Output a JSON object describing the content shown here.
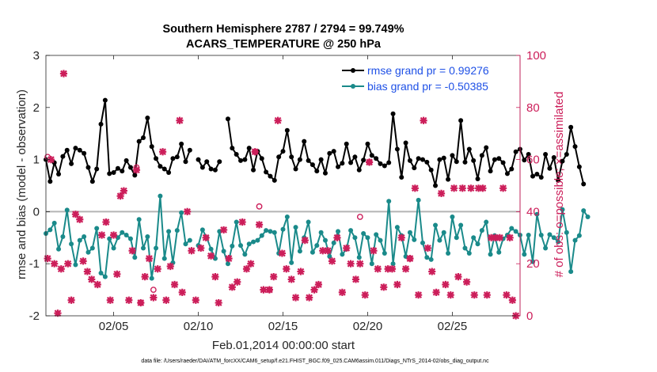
{
  "chart_data": {
    "type": "line",
    "title_line1": "Southern Hemisphere 2787 / 2794 = 99.749%",
    "title_line2": "ACARS_TEMPERATURE @ 250 hPa",
    "xlabel": "Feb.01,2014 00:00:00 start",
    "ylabel_left": "rmse and bias (model - observation)",
    "ylabel_right": "# of obs: o=possible; ×=assimilated",
    "x_range_days": [
      1,
      29
    ],
    "xticks": [
      {
        "day": 5,
        "label": "02/05"
      },
      {
        "day": 10,
        "label": "02/10"
      },
      {
        "day": 15,
        "label": "02/15"
      },
      {
        "day": 20,
        "label": "02/20"
      },
      {
        "day": 25,
        "label": "02/25"
      }
    ],
    "ylim_left": [
      -2,
      3
    ],
    "yticks_left": [
      {
        "value": -2,
        "label": "-2"
      },
      {
        "value": -1,
        "label": "-1"
      },
      {
        "value": 0,
        "label": "0"
      },
      {
        "value": 1,
        "label": "1"
      },
      {
        "value": 2,
        "label": "2"
      },
      {
        "value": 3,
        "label": "3"
      }
    ],
    "ylim_right": [
      0,
      100
    ],
    "yticks_right": [
      {
        "value": 0,
        "label": "0"
      },
      {
        "value": 20,
        "label": "20"
      },
      {
        "value": 40,
        "label": "40"
      },
      {
        "value": 60,
        "label": "60"
      },
      {
        "value": 80,
        "label": "80"
      },
      {
        "value": 100,
        "label": "100"
      }
    ],
    "zero_line": 0,
    "x_step_days": 0.25,
    "series": [
      {
        "name": "rmse grand pr = 0.99276",
        "axis": "left",
        "color": "#000000",
        "x_start": 1.0,
        "values": [
          1.0,
          0.58,
          0.94,
          0.72,
          1.06,
          1.18,
          0.92,
          1.22,
          1.18,
          1.12,
          0.85,
          0.58,
          0.82,
          1.68,
          2.14,
          0.73,
          0.75,
          0.83,
          0.78,
          0.98,
          0.85,
          0.7,
          1.35,
          1.42,
          1.8,
          1.25,
          1.02,
          0.87,
          0.82,
          0.75,
          1.02,
          1.05,
          1.3,
          0.96,
          1.18,
          null,
          1.0,
          0.85,
          0.96,
          0.82,
          0.8,
          0.96,
          null,
          1.78,
          1.22,
          1.1,
          0.98,
          1.0,
          1.22,
          0.8,
          1.16,
          1.02,
          0.76,
          0.68,
          0.6,
          1.05,
          1.16,
          1.56,
          1.05,
          0.82,
          1.0,
          1.35,
          0.98,
          0.9,
          0.78,
          1.0,
          0.74,
          1.12,
          1.16,
          0.86,
          0.93,
          1.3,
          0.94,
          1.05,
          0.8,
          0.99,
          1.3,
          1.08,
          1.02,
          0.92,
          0.88,
          0.94,
          1.88,
          1.2,
          0.66,
          1.32,
          0.98,
          0.84,
          1.02,
          1.0,
          0.95,
          0.8,
          0.5,
          1.0,
          1.03,
          0.62,
          1.08,
          0.96,
          1.75,
          0.95,
          1.2,
          0.98,
          0.63,
          1.08,
          1.23,
          0.78,
          1.0,
          1.02,
          0.94,
          0.73,
          0.82,
          1.15,
          1.2,
          0.99,
          1.1,
          0.68,
          0.72,
          0.66,
          1.1,
          0.83,
          1.04,
          0.6,
          0.97,
          1.1,
          1.62,
          1.25,
          0.86,
          0.53
        ]
      },
      {
        "name": "bias grand pr = -0.50385",
        "axis": "left",
        "color": "#1a8a8a",
        "x_start": 1.0,
        "values": [
          -0.42,
          -0.35,
          -0.22,
          -0.72,
          -0.48,
          0.03,
          -0.62,
          -1.02,
          -0.55,
          -0.48,
          -0.78,
          -0.7,
          -0.32,
          -1.18,
          -1.25,
          -0.52,
          -0.7,
          -0.5,
          -0.4,
          -0.45,
          -0.52,
          -0.88,
          -0.15,
          -0.7,
          -0.48,
          -1.28,
          -0.7,
          0.3,
          -0.9,
          -0.38,
          -0.98,
          -0.36,
          -0.02,
          -0.62,
          -0.55,
          null,
          -0.65,
          -0.35,
          -0.5,
          -0.72,
          -0.9,
          -0.38,
          -0.76,
          -1.0,
          -0.66,
          -0.2,
          -0.65,
          -0.82,
          -0.62,
          -0.58,
          -0.55,
          -0.46,
          -0.36,
          -0.38,
          -0.4,
          -0.8,
          -0.34,
          -0.1,
          -0.98,
          -0.3,
          -0.76,
          -0.5,
          -0.2,
          -0.78,
          -0.65,
          -0.4,
          -0.55,
          -0.86,
          -0.6,
          -0.38,
          -0.82,
          -0.72,
          -0.36,
          -0.5,
          -0.88,
          -0.42,
          -0.5,
          -1.0,
          -0.44,
          -0.55,
          -0.8,
          0.2,
          -1.0,
          -0.3,
          -0.46,
          -0.86,
          -0.4,
          -0.54,
          0.22,
          -0.6,
          -0.88,
          -0.92,
          -0.26,
          -0.55,
          -0.4,
          -0.8,
          -0.1,
          -0.5,
          -0.26,
          -0.7,
          -0.8,
          -0.5,
          -0.62,
          -0.36,
          -0.2,
          -0.82,
          -0.46,
          -0.78,
          -0.52,
          -0.45,
          -0.32,
          -0.38,
          -0.45,
          -0.82,
          -0.45,
          -0.96,
          -0.05,
          -0.45,
          -0.7,
          -0.44,
          -0.5,
          -0.58,
          0.04,
          -0.4,
          -1.15,
          -0.55,
          -0.46,
          0.02,
          -0.1
        ]
      },
      {
        "name": "# assimilated",
        "axis": "right",
        "color": "#cc1e5a",
        "marker": "x",
        "points": [
          [
            1.1,
            22
          ],
          [
            1.3,
            60
          ],
          [
            1.5,
            20
          ],
          [
            1.7,
            1
          ],
          [
            1.9,
            18
          ],
          [
            2.05,
            93
          ],
          [
            2.3,
            20
          ],
          [
            2.5,
            6
          ],
          [
            2.75,
            39
          ],
          [
            3.0,
            37
          ],
          [
            3.2,
            21
          ],
          [
            3.45,
            17
          ],
          [
            3.7,
            14
          ],
          [
            4.05,
            12
          ],
          [
            4.3,
            31
          ],
          [
            4.55,
            36
          ],
          [
            4.8,
            6
          ],
          [
            5.0,
            31
          ],
          [
            5.2,
            16
          ],
          [
            5.4,
            46
          ],
          [
            5.6,
            48
          ],
          [
            5.9,
            6
          ],
          [
            6.1,
            25
          ],
          [
            6.35,
            56
          ],
          [
            6.6,
            5
          ],
          [
            6.85,
            15
          ],
          [
            7.1,
            22
          ],
          [
            7.35,
            7
          ],
          [
            7.6,
            18
          ],
          [
            7.9,
            63
          ],
          [
            8.1,
            6
          ],
          [
            8.35,
            19
          ],
          [
            8.6,
            12
          ],
          [
            8.9,
            75
          ],
          [
            9.05,
            9
          ],
          [
            9.35,
            40
          ],
          [
            9.6,
            25
          ],
          [
            9.85,
            6
          ],
          [
            10.15,
            26
          ],
          [
            10.45,
            30
          ],
          [
            10.75,
            23
          ],
          [
            11.0,
            15
          ],
          [
            11.2,
            5
          ],
          [
            11.5,
            33
          ],
          [
            11.8,
            22
          ],
          [
            12.0,
            11
          ],
          [
            12.3,
            13
          ],
          [
            12.6,
            36
          ],
          [
            12.85,
            18
          ],
          [
            13.1,
            20
          ],
          [
            13.35,
            63
          ],
          [
            13.6,
            35
          ],
          [
            13.85,
            10
          ],
          [
            14.2,
            10
          ],
          [
            14.45,
            15
          ],
          [
            14.7,
            75
          ],
          [
            14.95,
            24
          ],
          [
            15.2,
            18
          ],
          [
            15.5,
            14
          ],
          [
            15.75,
            7
          ],
          [
            16.05,
            17
          ],
          [
            16.3,
            29
          ],
          [
            16.55,
            7
          ],
          [
            16.85,
            10
          ],
          [
            17.1,
            12
          ],
          [
            17.35,
            25
          ],
          [
            17.65,
            25
          ],
          [
            17.9,
            21
          ],
          [
            18.2,
            30
          ],
          [
            18.5,
            9
          ],
          [
            18.75,
            26
          ],
          [
            19.0,
            20
          ],
          [
            19.3,
            14
          ],
          [
            19.55,
            20
          ],
          [
            19.85,
            8
          ],
          [
            20.1,
            59
          ],
          [
            20.35,
            25
          ],
          [
            20.6,
            18
          ],
          [
            20.95,
            11
          ],
          [
            21.2,
            18
          ],
          [
            21.45,
            18
          ],
          [
            21.75,
            12
          ],
          [
            22.0,
            30
          ],
          [
            22.25,
            18
          ],
          [
            22.5,
            22
          ],
          [
            22.8,
            49
          ],
          [
            23.0,
            8
          ],
          [
            23.3,
            75
          ],
          [
            23.55,
            26
          ],
          [
            23.8,
            17
          ],
          [
            24.05,
            9
          ],
          [
            24.35,
            47
          ],
          [
            24.6,
            12
          ],
          [
            24.9,
            8
          ],
          [
            25.1,
            49
          ],
          [
            25.35,
            15
          ],
          [
            25.6,
            49
          ],
          [
            25.85,
            13
          ],
          [
            26.1,
            49
          ],
          [
            26.3,
            8
          ],
          [
            26.55,
            49
          ],
          [
            26.8,
            49
          ],
          [
            27.05,
            8
          ],
          [
            27.3,
            30
          ],
          [
            27.55,
            30
          ],
          [
            27.8,
            30
          ],
          [
            28.0,
            49
          ],
          [
            28.2,
            8
          ],
          [
            28.4,
            30
          ],
          [
            28.55,
            6
          ],
          [
            28.75,
            0
          ]
        ]
      },
      {
        "name": "# possible",
        "axis": "right",
        "color": "#cc1e5a",
        "marker": "o",
        "points": [
          [
            1.1,
            61
          ],
          [
            6.35,
            57
          ],
          [
            6.6,
            5
          ],
          [
            7.35,
            10
          ],
          [
            13.35,
            63
          ],
          [
            13.6,
            42
          ],
          [
            14.2,
            10
          ],
          [
            19.55,
            38
          ],
          [
            20.1,
            59
          ],
          [
            22.5,
            22
          ]
        ]
      }
    ]
  },
  "footer": "data file: /Users/raeder/DAI/ATM_forcXX/CAM6_setup/f.e21.FHIST_BGC.f09_025.CAM6assim.011/Diags_NTrS_2014-02/obs_diag_output.nc"
}
